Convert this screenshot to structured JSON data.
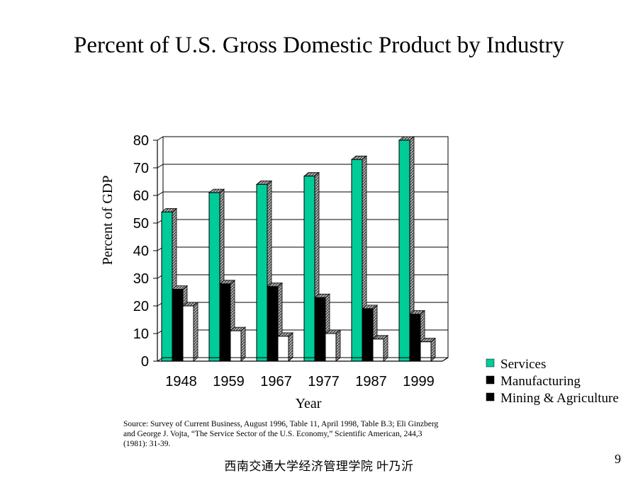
{
  "slide": {
    "title": "Percent of U.S. Gross Domestic Product by Industry",
    "source": "Source:  Survey of Current Business, August 1996, Table 11, April 1998, Table B.3;  Eli Ginzberg and George J. Vojta, “The Service Sector of the U.S. Economy,” Scientific American, 244,3 (1981): 31-39.",
    "footer": "西南交通大学经济管理学院   叶乃沂",
    "page_number": "9"
  },
  "chart_data": {
    "type": "bar",
    "title": "Percent of U.S. Gross Domestic Product by Industry",
    "xlabel": "Year",
    "ylabel": "Percent of GDP",
    "categories": [
      "1948",
      "1959",
      "1967",
      "1977",
      "1987",
      "1999"
    ],
    "ylim": [
      0,
      80
    ],
    "yticks": [
      0,
      10,
      20,
      30,
      40,
      50,
      60,
      70,
      80
    ],
    "grid": true,
    "legend_position": "right-bottom",
    "series": [
      {
        "name": "Services",
        "color": "#00cc99",
        "values": [
          54,
          61,
          64,
          67,
          73,
          80
        ]
      },
      {
        "name": "Manufacturing",
        "color": "#000000",
        "values": [
          26,
          28,
          27,
          23,
          19,
          17
        ]
      },
      {
        "name": "Mining & Agriculture",
        "color": "#ffffff",
        "values": [
          20,
          11,
          9,
          10,
          8,
          7
        ]
      }
    ],
    "legend_colors": [
      "#00cc99",
      "#000000",
      "#000000"
    ]
  }
}
